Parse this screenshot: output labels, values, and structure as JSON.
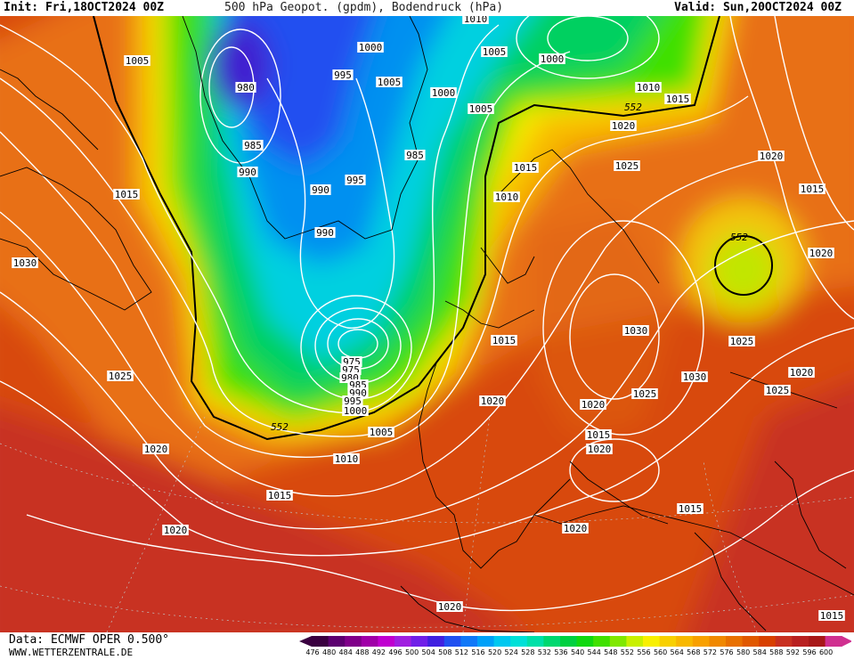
{
  "header": {
    "init": "Init: Fri,18OCT2024 00Z",
    "title": "500 hPa Geopot. (gpdm), Bodendruck (hPa)",
    "valid": "Valid: Sun,20OCT2024 00Z"
  },
  "footer": {
    "data_source": "Data: ECMWF OPER 0.500°",
    "website": "WWW.WETTERZENTRALE.DE"
  },
  "legend": {
    "values": [
      "476",
      "480",
      "484",
      "488",
      "492",
      "496",
      "500",
      "504",
      "508",
      "512",
      "516",
      "520",
      "524",
      "528",
      "532",
      "536",
      "540",
      "544",
      "548",
      "552",
      "556",
      "560",
      "564",
      "568",
      "572",
      "576",
      "580",
      "584",
      "588",
      "592",
      "596",
      "600"
    ],
    "colors": [
      "#3a0040",
      "#5c0070",
      "#80008a",
      "#a000a8",
      "#c000d0",
      "#a020e0",
      "#7020e8",
      "#4020e0",
      "#2050f0",
      "#1078f8",
      "#00a0f8",
      "#00c8f0",
      "#00e0d8",
      "#00e0a8",
      "#00d870",
      "#00d040",
      "#10d810",
      "#40e000",
      "#80e800",
      "#c8f000",
      "#f8f000",
      "#f8d000",
      "#f8b800",
      "#f8a000",
      "#f08800",
      "#e87000",
      "#e05800",
      "#d84000",
      "#c83020",
      "#b82020",
      "#a81818",
      "#d03090"
    ]
  },
  "map": {
    "pressure_labels": [
      {
        "text": "1005"
      },
      {
        "text": "1000"
      },
      {
        "text": "1010"
      },
      {
        "text": "1005"
      },
      {
        "text": "1000"
      },
      {
        "text": "980"
      },
      {
        "text": "995"
      },
      {
        "text": "1005"
      },
      {
        "text": "1000"
      },
      {
        "text": "1010"
      },
      {
        "text": "1015"
      },
      {
        "text": "1005"
      },
      {
        "text": "985"
      },
      {
        "text": "1020"
      },
      {
        "text": "990"
      },
      {
        "text": "985"
      },
      {
        "text": "1025"
      },
      {
        "text": "1015"
      },
      {
        "text": "995"
      },
      {
        "text": "990"
      },
      {
        "text": "1010"
      },
      {
        "text": "1015"
      },
      {
        "text": "1020"
      },
      {
        "text": "1015"
      },
      {
        "text": "990"
      },
      {
        "text": "1030"
      },
      {
        "text": "1020"
      },
      {
        "text": "1015"
      },
      {
        "text": "1030"
      },
      {
        "text": "1025"
      },
      {
        "text": "975"
      },
      {
        "text": "975"
      },
      {
        "text": "980"
      },
      {
        "text": "985"
      },
      {
        "text": "990"
      },
      {
        "text": "995"
      },
      {
        "text": "1025"
      },
      {
        "text": "1030"
      },
      {
        "text": "1020"
      },
      {
        "text": "1020"
      },
      {
        "text": "1025"
      },
      {
        "text": "1025"
      },
      {
        "text": "1020"
      },
      {
        "text": "1000"
      },
      {
        "text": "1020"
      },
      {
        "text": "1005"
      },
      {
        "text": "1015"
      },
      {
        "text": "1020"
      },
      {
        "text": "1010"
      },
      {
        "text": "1015"
      },
      {
        "text": "1015"
      },
      {
        "text": "1020"
      },
      {
        "text": "1020"
      },
      {
        "text": "1020"
      },
      {
        "text": "1015"
      }
    ],
    "contour_labels": [
      {
        "text": "552"
      },
      {
        "text": "552"
      },
      {
        "text": "552"
      }
    ]
  }
}
